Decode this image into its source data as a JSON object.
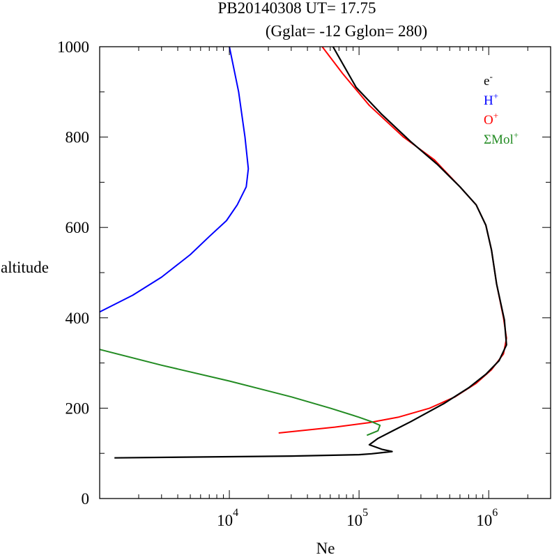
{
  "chart_data": {
    "type": "line",
    "title_line1": "PB20140308   UT=  17.75",
    "title_line2": "(Gglat= -12   Gglon=  280)",
    "xlabel": "Ne",
    "ylabel": "altitude",
    "x_scale": "log",
    "xlim": [
      1000,
      3000000
    ],
    "ylim": [
      0,
      1000
    ],
    "y_ticks": [
      "0",
      "200",
      "400",
      "600",
      "800",
      "1000"
    ],
    "x_ticks": [
      {
        "base": "10",
        "exp": "4",
        "value": 10000
      },
      {
        "base": "10",
        "exp": "5",
        "value": 100000
      },
      {
        "base": "10",
        "exp": "6",
        "value": 1000000
      }
    ],
    "legend_position": "top-right",
    "grid": false,
    "series": [
      {
        "name": "e",
        "superscript": "-",
        "color": "#000000",
        "points": [
          [
            1300,
            90
          ],
          [
            30000,
            94
          ],
          [
            100000,
            97
          ],
          [
            125000,
            99
          ],
          [
            180000,
            104
          ],
          [
            150000,
            109
          ],
          [
            120000,
            119
          ],
          [
            140000,
            133
          ],
          [
            180000,
            149
          ],
          [
            250000,
            170
          ],
          [
            450000,
            210
          ],
          [
            700000,
            245
          ],
          [
            950000,
            275
          ],
          [
            1200000,
            305
          ],
          [
            1370000,
            340
          ],
          [
            1320000,
            395
          ],
          [
            1150000,
            475
          ],
          [
            1050000,
            550
          ],
          [
            950000,
            605
          ],
          [
            800000,
            650
          ],
          [
            600000,
            690
          ],
          [
            400000,
            740
          ],
          [
            250000,
            790
          ],
          [
            150000,
            850
          ],
          [
            95000,
            910
          ],
          [
            63000,
            1000
          ]
        ]
      },
      {
        "name": "H",
        "superscript": "+",
        "color": "#0000ff",
        "points": [
          [
            1000,
            413
          ],
          [
            1800,
            450
          ],
          [
            3000,
            490
          ],
          [
            5000,
            540
          ],
          [
            7000,
            580
          ],
          [
            9500,
            615
          ],
          [
            11500,
            650
          ],
          [
            13500,
            690
          ],
          [
            14000,
            730
          ],
          [
            13200,
            800
          ],
          [
            11800,
            900
          ],
          [
            10000,
            1000
          ]
        ]
      },
      {
        "name": "O",
        "superscript": "+",
        "color": "#ff0000",
        "points": [
          [
            24000,
            145
          ],
          [
            65000,
            158
          ],
          [
            120000,
            168
          ],
          [
            200000,
            180
          ],
          [
            350000,
            200
          ],
          [
            550000,
            225
          ],
          [
            800000,
            255
          ],
          [
            1050000,
            285
          ],
          [
            1300000,
            320
          ],
          [
            1370000,
            355
          ],
          [
            1300000,
            400
          ],
          [
            1150000,
            475
          ],
          [
            1050000,
            550
          ],
          [
            950000,
            605
          ],
          [
            800000,
            650
          ],
          [
            600000,
            690
          ],
          [
            380000,
            750
          ],
          [
            220000,
            800
          ],
          [
            120000,
            870
          ],
          [
            75000,
            940
          ],
          [
            52000,
            1000
          ]
        ]
      },
      {
        "name": "ΣMol",
        "superscript": "+",
        "color": "#228b22",
        "points": [
          [
            1000,
            330
          ],
          [
            3000,
            295
          ],
          [
            10000,
            260
          ],
          [
            30000,
            225
          ],
          [
            60000,
            200
          ],
          [
            100000,
            180
          ],
          [
            125000,
            170
          ],
          [
            145000,
            162
          ],
          [
            140000,
            150
          ],
          [
            115000,
            140
          ]
        ]
      }
    ]
  }
}
